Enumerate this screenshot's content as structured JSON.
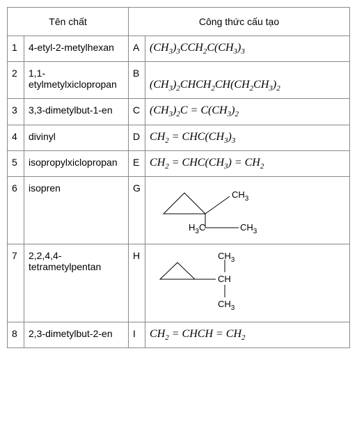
{
  "header": {
    "col1": "Tên chất",
    "col2": "Công thức cấu tạo"
  },
  "rows": [
    {
      "num": "1",
      "name": "4-etyl-2-metylhexan",
      "letter": "A"
    },
    {
      "num": "2",
      "name": "1,1-etylmetylxiclopropan",
      "letter": "B"
    },
    {
      "num": "3",
      "name": "3,3-dimetylbut-1-en",
      "letter": "C"
    },
    {
      "num": "4",
      "name": "divinyl",
      "letter": "D"
    },
    {
      "num": "5",
      "name": "isopropylxiclopropan",
      "letter": "E"
    },
    {
      "num": "6",
      "name": "isopren",
      "letter": "G"
    },
    {
      "num": "7",
      "name": "2,2,4,4-tetrametylpentan",
      "letter": "H"
    },
    {
      "num": "8",
      "name": "2,3-dimetylbut-2-en",
      "letter": "I"
    }
  ],
  "formulas": {
    "A": {
      "parts": [
        "(CH",
        "3",
        ")",
        "3",
        "CCH",
        "2",
        "C(CH",
        "3",
        ")",
        "3"
      ],
      "sub_idx": [
        1,
        3,
        5,
        7,
        9
      ]
    },
    "B": {
      "parts": [
        "(CH",
        "3",
        ")",
        "2",
        "CHCH",
        "2",
        "CH(CH",
        "2",
        "CH",
        "3",
        ")",
        "2"
      ],
      "sub_idx": [
        1,
        3,
        5,
        7,
        9,
        11
      ]
    },
    "C": {
      "parts": [
        "(CH",
        "3",
        ")",
        "2",
        "C = C(CH",
        "3",
        ")",
        "2"
      ],
      "sub_idx": [
        1,
        3,
        5,
        7
      ]
    },
    "D": {
      "parts": [
        "CH",
        "2",
        " = CHC(CH",
        "3",
        ")",
        "3"
      ],
      "sub_idx": [
        1,
        3,
        5
      ]
    },
    "E": {
      "parts": [
        "CH",
        "2",
        " = CHC(CH",
        "3",
        ") = CH",
        "2"
      ],
      "sub_idx": [
        1,
        3,
        5
      ]
    },
    "I": {
      "parts": [
        "CH",
        "2",
        " = CHCH = CH",
        "2"
      ],
      "sub_idx": [
        1,
        3
      ]
    }
  },
  "structures": {
    "G": {
      "type": "cyclopropane-substituted",
      "labels": {
        "sub1": "CH",
        "sub1_sub": "3",
        "sub2a": "H",
        "sub2b": "3",
        "sub2c": "C",
        "sub3": "CH",
        "sub3_sub": "3"
      }
    },
    "H": {
      "type": "cyclopropane-isopropyl",
      "labels": {
        "ch": "CH",
        "me1": "CH",
        "me1_sub": "3",
        "me2": "CH",
        "me2_sub": "3"
      }
    }
  },
  "style": {
    "font_family": "Arial, sans-serif",
    "formula_font": "Times New Roman, serif",
    "border_color": "#888888",
    "text_color": "#000000",
    "bg_color": "#ffffff",
    "base_fontsize": 14,
    "formula_fontsize": 16
  }
}
